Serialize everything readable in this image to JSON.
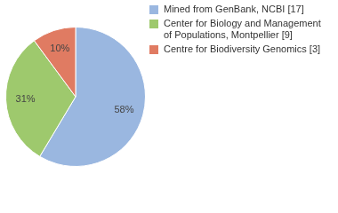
{
  "chart_data": {
    "type": "pie",
    "categories": [
      "Mined from GenBank, NCBI [17]",
      "Center for Biology and Management of Populations, Montpellier [9]",
      "Centre for Biodiversity Genomics [3]"
    ],
    "values": [
      58,
      31,
      10
    ],
    "value_labels": [
      "58%",
      "31%",
      "10%"
    ],
    "colors": [
      "#9ab7e0",
      "#9ec96d",
      "#e07b62"
    ],
    "data_labels": true,
    "legend": "right"
  }
}
